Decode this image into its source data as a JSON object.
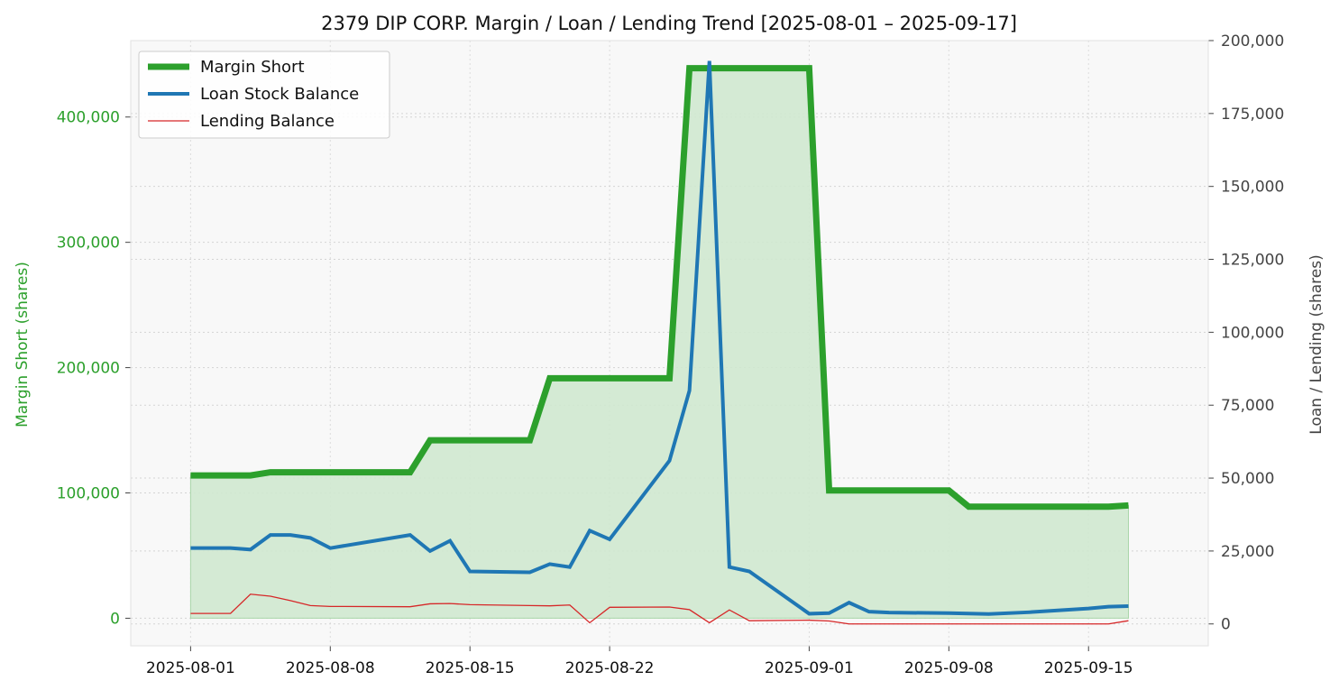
{
  "chart_data": {
    "type": "line",
    "title": "2379 DIP CORP. Margin / Loan / Lending Trend [2025-08-01 – 2025-09-17]",
    "ylabel_left": "Margin Short (shares)",
    "ylabel_right": "Loan / Lending (shares)",
    "xlabel": "",
    "x_ticks": [
      "2025-08-01",
      "2025-08-08",
      "2025-08-15",
      "2025-08-22",
      "2025-09-01",
      "2025-09-08",
      "2025-09-15"
    ],
    "y_left_ticks": [
      0,
      100000,
      200000,
      300000,
      400000
    ],
    "y_left_tick_labels": [
      "0",
      "100,000",
      "200,000",
      "300,000",
      "400,000"
    ],
    "y_right_ticks": [
      0,
      25000,
      50000,
      75000,
      100000,
      125000,
      150000,
      175000,
      200000
    ],
    "y_right_tick_labels": [
      "0",
      "25,000",
      "50,000",
      "75,000",
      "100,000",
      "125,000",
      "150,000",
      "175,000",
      "200,000"
    ],
    "xlim": [
      "2025-07-29",
      "2025-09-21"
    ],
    "y_left_lim": [
      -22000,
      461000
    ],
    "y_right_lim": [
      -7500,
      200000
    ],
    "grid": true,
    "legend_position": "top-left",
    "colors": {
      "margin_short": "#2ca02c",
      "margin_fill": "#cfe8cf",
      "loan": "#1f77b4",
      "lending": "#d62728",
      "left_axis_text": "#2ca02c",
      "right_axis_text": "#444444",
      "plot_bg": "#f8f8f8"
    },
    "series": [
      {
        "name": "Margin Short",
        "axis": "left",
        "x": [
          "2025-08-01",
          "2025-08-04",
          "2025-08-05",
          "2025-08-12",
          "2025-08-13",
          "2025-08-18",
          "2025-08-19",
          "2025-08-25",
          "2025-08-26",
          "2025-09-01",
          "2025-09-02",
          "2025-09-08",
          "2025-09-09",
          "2025-09-16",
          "2025-09-17"
        ],
        "values": [
          114000,
          114000,
          116500,
          116500,
          142000,
          142000,
          191500,
          191500,
          439000,
          439000,
          102000,
          102000,
          89000,
          89000,
          90000
        ]
      },
      {
        "name": "Loan Stock Balance",
        "axis": "right",
        "x": [
          "2025-08-01",
          "2025-08-03",
          "2025-08-04",
          "2025-08-05",
          "2025-08-06",
          "2025-08-07",
          "2025-08-08",
          "2025-08-12",
          "2025-08-13",
          "2025-08-14",
          "2025-08-15",
          "2025-08-18",
          "2025-08-19",
          "2025-08-20",
          "2025-08-21",
          "2025-08-22",
          "2025-08-25",
          "2025-08-26",
          "2025-08-27",
          "2025-08-28",
          "2025-08-29",
          "2025-09-01",
          "2025-09-02",
          "2025-09-03",
          "2025-09-04",
          "2025-09-05",
          "2025-09-08",
          "2025-09-10",
          "2025-09-12",
          "2025-09-15",
          "2025-09-16",
          "2025-09-17"
        ],
        "values": [
          26000,
          26000,
          25500,
          30500,
          30500,
          29500,
          26000,
          30500,
          25000,
          28500,
          18000,
          17700,
          20500,
          19500,
          32000,
          29000,
          56000,
          80000,
          193000,
          19500,
          18000,
          3500,
          3700,
          7300,
          4200,
          3900,
          3700,
          3400,
          4000,
          5300,
          5900,
          6100
        ]
      },
      {
        "name": "Lending Balance",
        "axis": "right",
        "x": [
          "2025-08-01",
          "2025-08-03",
          "2025-08-04",
          "2025-08-05",
          "2025-08-06",
          "2025-08-07",
          "2025-08-08",
          "2025-08-12",
          "2025-08-13",
          "2025-08-14",
          "2025-08-15",
          "2025-08-18",
          "2025-08-19",
          "2025-08-20",
          "2025-08-21",
          "2025-08-22",
          "2025-08-25",
          "2025-08-26",
          "2025-08-27",
          "2025-08-28",
          "2025-08-29",
          "2025-09-01",
          "2025-09-02",
          "2025-09-03",
          "2025-09-08",
          "2025-09-16",
          "2025-09-17"
        ],
        "values": [
          3600,
          3600,
          10200,
          9500,
          8000,
          6300,
          6000,
          5900,
          6900,
          7000,
          6600,
          6300,
          6200,
          6500,
          400,
          5700,
          5800,
          4900,
          400,
          4800,
          1100,
          1300,
          1000,
          0,
          0,
          0,
          1100
        ]
      }
    ]
  }
}
